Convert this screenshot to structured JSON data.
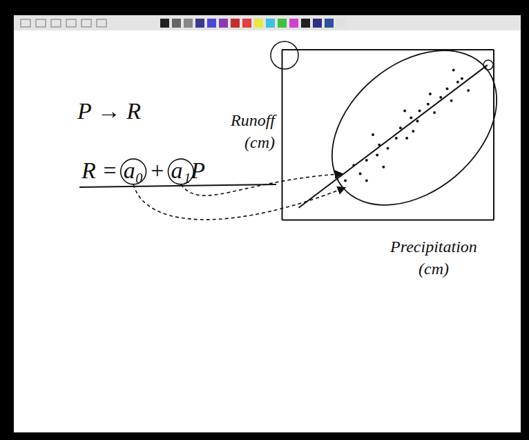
{
  "chart_data": {
    "type": "scatter",
    "annotations": [
      "P → R",
      "R = a₀ + a₁P"
    ],
    "xlabel": "Precipitation (cm)",
    "ylabel": "Runoff (cm)",
    "xlim": [
      0,
      10
    ],
    "ylim": [
      0,
      10
    ],
    "xticks": [],
    "yticks": [],
    "tick_labels": false,
    "grid": false,
    "color": "#111111",
    "series": [
      {
        "type": "scatter",
        "marker": "dot",
        "x": [
          3.4,
          3.7,
          4.0,
          4.5,
          4.6,
          5.0,
          5.4,
          5.6,
          5.9,
          6.1,
          6.4,
          6.5,
          6.9,
          7.2,
          7.5,
          7.8,
          8.0,
          8.3,
          8.5,
          8.8,
          4.0,
          4.8,
          6.2,
          7.0,
          8.1,
          3.0,
          4.3,
          5.8
        ],
        "values": [
          3.2,
          2.7,
          3.5,
          3.8,
          4.4,
          4.2,
          4.8,
          5.4,
          4.8,
          6.0,
          5.8,
          6.4,
          6.8,
          6.3,
          7.2,
          7.7,
          7.0,
          8.1,
          8.3,
          7.6,
          2.3,
          3.1,
          5.2,
          7.4,
          8.8,
          2.3,
          5.0,
          6.4
        ]
      },
      {
        "type": "line",
        "line_style": "solid",
        "x": [
          0.8,
          9.7
        ],
        "values": [
          0.7,
          9.1
        ]
      }
    ]
  }
}
